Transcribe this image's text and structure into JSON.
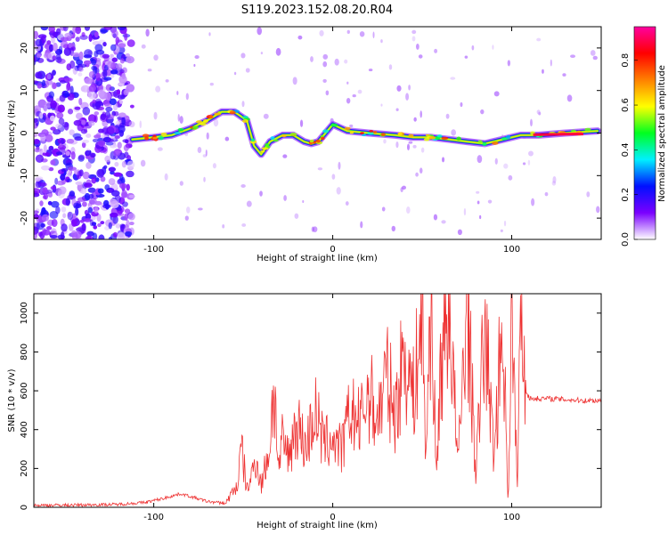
{
  "title": "S119.2023.152.08.20.R04",
  "chart_data": [
    {
      "type": "heatmap",
      "xlabel": "Height of straight line (km)",
      "ylabel": "Frequency (Hz)",
      "xlim": [
        -167,
        150
      ],
      "ylim": [
        -25,
        25
      ],
      "xticks": [
        -100,
        0,
        100
      ],
      "yticks": [
        -20,
        -10,
        0,
        10,
        20
      ],
      "grid": false,
      "trace": {
        "x": [
          -112,
          -100,
          -90,
          -80,
          -70,
          -62,
          -55,
          -48,
          -44,
          -40,
          -35,
          -28,
          -22,
          -16,
          -12,
          -8,
          -4,
          0,
          8,
          20,
          35,
          45,
          55,
          65,
          75,
          85,
          95,
          105,
          115,
          130,
          148
        ],
        "y": [
          -1.5,
          -1,
          -0.5,
          1,
          3,
          5,
          5,
          3,
          -3,
          -5,
          -2,
          -0.5,
          -0.5,
          -2,
          -2.5,
          -2,
          0,
          2,
          0.5,
          0,
          -0.5,
          -1,
          -1,
          -1.5,
          -2,
          -2.5,
          -1.5,
          -0.5,
          -0.5,
          0,
          0.5
        ]
      },
      "colorbar": {
        "label": "Normalized spectral amplitude",
        "ticks": [
          0.0,
          0.2,
          0.4,
          0.6,
          0.8
        ],
        "range": [
          0,
          0.95
        ],
        "colors": [
          "#ffffff",
          "#7a00ff",
          "#0010ff",
          "#00f0ff",
          "#00ff20",
          "#ffff00",
          "#ff8000",
          "#ff0000",
          "#ff00a0"
        ]
      }
    },
    {
      "type": "line",
      "xlabel": "Height of straight line (km)",
      "ylabel": "SNR (10 * v/v)",
      "xlim": [
        -167,
        150
      ],
      "ylim": [
        0,
        1100
      ],
      "xticks": [
        -100,
        0,
        100
      ],
      "yticks": [
        0,
        200,
        400,
        600,
        800,
        1000
      ],
      "color": "#ee3333",
      "series": [
        {
          "x": [
            -167,
            -140,
            -120,
            -105,
            -95,
            -85,
            -70,
            -60,
            -53,
            -51,
            -48,
            -45,
            -43,
            -40,
            -35,
            -33,
            -30,
            -28,
            -25,
            -20,
            -15,
            -10,
            -5,
            0,
            5,
            10,
            15,
            20,
            25,
            30,
            35,
            40,
            45,
            50,
            52,
            55,
            58,
            60,
            65,
            70,
            75,
            80,
            85,
            90,
            95,
            98,
            100,
            103,
            105,
            108,
            110,
            120,
            130,
            140,
            150
          ],
          "y": [
            10,
            12,
            15,
            25,
            45,
            70,
            30,
            20,
            120,
            310,
            90,
            170,
            260,
            110,
            320,
            640,
            180,
            350,
            260,
            440,
            300,
            500,
            320,
            360,
            290,
            500,
            420,
            600,
            450,
            680,
            480,
            810,
            570,
            990,
            260,
            1100,
            140,
            680,
            1070,
            210,
            1080,
            180,
            950,
            260,
            980,
            30,
            1000,
            120,
            960,
            600,
            560,
            560,
            555,
            550,
            550
          ]
        }
      ]
    }
  ]
}
